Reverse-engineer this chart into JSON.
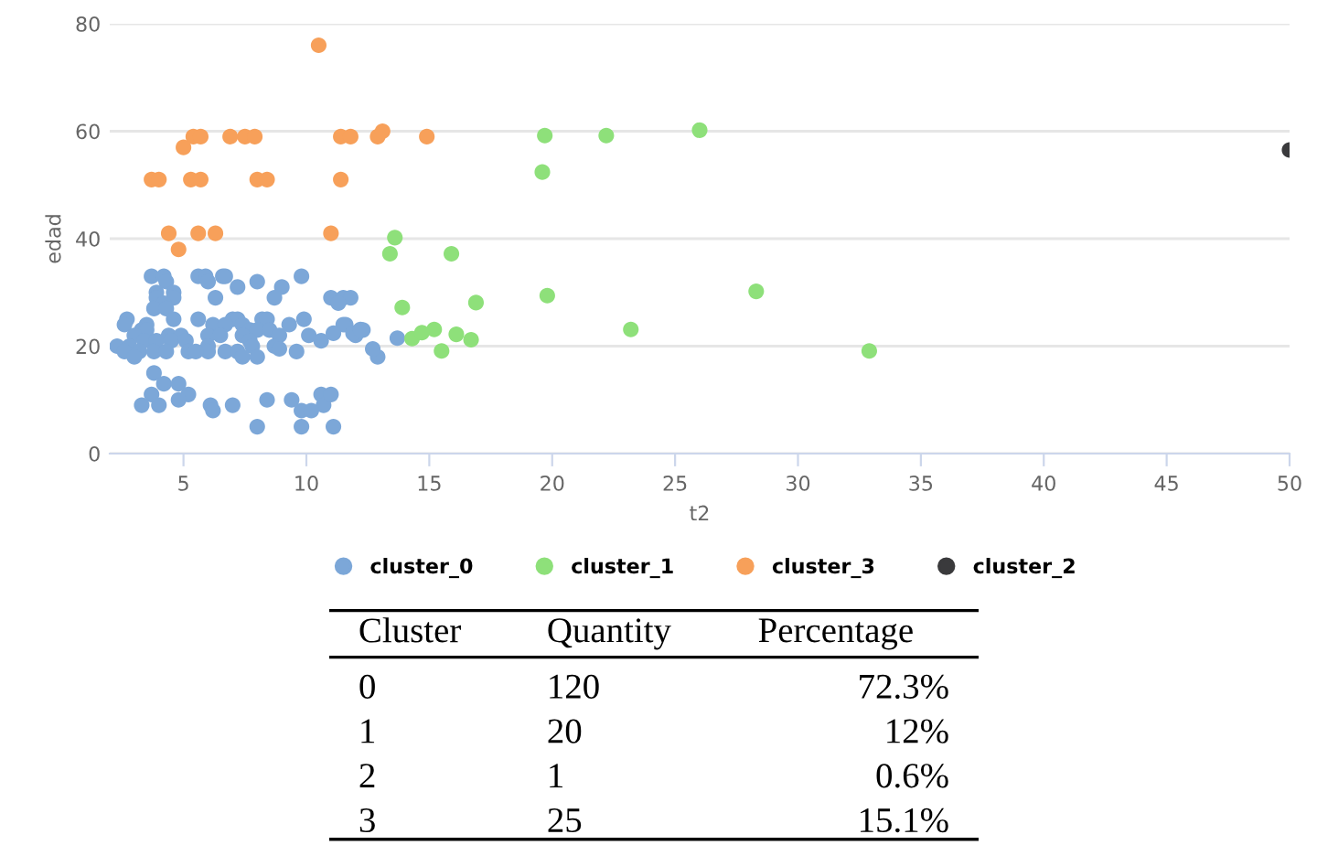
{
  "chart_data": {
    "type": "scatter",
    "xlabel": "t2",
    "ylabel": "edad",
    "xlim": [
      2,
      50
    ],
    "ylim": [
      0,
      80
    ],
    "xticks": [
      5,
      10,
      15,
      20,
      25,
      30,
      35,
      40,
      45,
      50
    ],
    "yticks": [
      0,
      20,
      40,
      60,
      80
    ],
    "grid": "y",
    "legend": "bottom",
    "marker": "circle",
    "series": [
      {
        "name": "cluster_0",
        "color": "#7ca7d8",
        "x": [
          3.7,
          4.2,
          5.6,
          5.9,
          6.6,
          6.7,
          9.8,
          4.3,
          6.0,
          8.0,
          7.2,
          9.0,
          4.6,
          3.9,
          3.9,
          4.6,
          6.3,
          8.7,
          11.0,
          11.5,
          11.8,
          4.2,
          11.3,
          3.8,
          4.3,
          2.7,
          4.6,
          5.6,
          7.0,
          7.2,
          8.2,
          8.4,
          9.9,
          2.6,
          3.5,
          6.2,
          6.7,
          7.4,
          9.3,
          11.6,
          3.3,
          3.5,
          7.7,
          8.0,
          8.5,
          12.3,
          3.0,
          4.4,
          4.9,
          6.0,
          6.5,
          7.4,
          8.9,
          10.1,
          12.0,
          3.4,
          3.9,
          4.5,
          5.1,
          7.7,
          10.6,
          2.3,
          2.8,
          6.0,
          7.8,
          8.7,
          2.6,
          3.2,
          3.8,
          4.3,
          5.2,
          6.0,
          6.7,
          7.2,
          9.6,
          3.0,
          7.4,
          8.0,
          12.9,
          8.9,
          12.7,
          13.7,
          3.8,
          4.2,
          4.8,
          3.7,
          5.2,
          10.6,
          4.8,
          8.4,
          9.4,
          3.3,
          4.0,
          6.1,
          7.0,
          10.7,
          6.2,
          9.8,
          10.2,
          8.0,
          9.8,
          11.1,
          11.5,
          11.9,
          12.2,
          11.1,
          11.0,
          5.5
        ],
        "values": [
          33,
          33,
          33,
          33,
          33,
          33,
          33,
          32,
          32,
          32,
          31,
          31,
          30,
          30,
          29,
          29,
          29,
          29,
          29,
          29,
          29,
          28,
          28,
          27,
          27,
          25,
          25,
          25,
          25,
          25,
          25,
          25,
          25,
          24,
          24,
          24,
          24,
          24,
          24,
          24,
          23,
          23,
          23,
          23,
          23,
          23,
          22,
          22,
          22,
          22,
          22,
          22,
          22,
          22,
          22,
          21,
          21,
          21,
          21,
          21,
          21,
          20,
          20,
          20,
          20,
          20,
          19,
          19,
          19,
          19,
          19,
          19,
          19,
          19,
          19,
          18,
          18,
          18,
          18,
          19.5,
          19.5,
          21.5,
          15,
          13,
          13,
          11,
          11,
          11,
          10,
          10,
          10,
          9,
          9,
          9,
          9,
          9,
          8,
          8,
          8,
          5,
          5,
          5,
          24,
          22.4,
          23.1,
          22.4,
          11,
          19
        ]
      },
      {
        "name": "cluster_1",
        "color": "#8ee07a",
        "x": [
          19.7,
          22.2,
          26.0,
          19.6,
          13.6,
          13.4,
          15.9,
          19.8,
          28.3,
          13.9,
          16.9,
          15.2,
          23.2,
          14.5,
          14.3,
          16.1,
          16.7,
          15.5,
          32.9,
          14.7
        ],
        "values": [
          59.2,
          59.2,
          60.2,
          52.4,
          40.2,
          37.2,
          37.2,
          29.4,
          30.2,
          27.2,
          28.1,
          23.1,
          23.1,
          null,
          21.4,
          22.2,
          21.2,
          19.1,
          19.1,
          22.5
        ]
      },
      {
        "name": "cluster_3",
        "color": "#f7a05a",
        "x": [
          5.4,
          5.7,
          6.9,
          7.5,
          7.9,
          11.4,
          11.8,
          12.9,
          13.1,
          14.9,
          10.5,
          5.0,
          3.7,
          4.0,
          5.3,
          5.7,
          8.0,
          8.4,
          11.4,
          4.4,
          5.6,
          6.3,
          10.9,
          11.0,
          4.8
        ],
        "values": [
          59,
          59,
          59,
          59,
          59,
          59,
          59,
          59,
          60,
          59,
          76,
          57,
          51,
          51,
          51,
          51,
          51,
          51,
          51,
          41,
          41,
          41,
          null,
          41,
          38
        ]
      },
      {
        "name": "cluster_2",
        "color": "#3a3a3c",
        "x": [
          50.0
        ],
        "values": [
          56.5
        ]
      }
    ],
    "annotations": [
      "Cluster",
      "Quantity",
      "Percentage",
      "0",
      "120",
      "72.3%",
      "1",
      "20",
      "12%",
      "2",
      "1",
      "0.6%",
      "3",
      "25",
      "15.1%"
    ]
  }
}
